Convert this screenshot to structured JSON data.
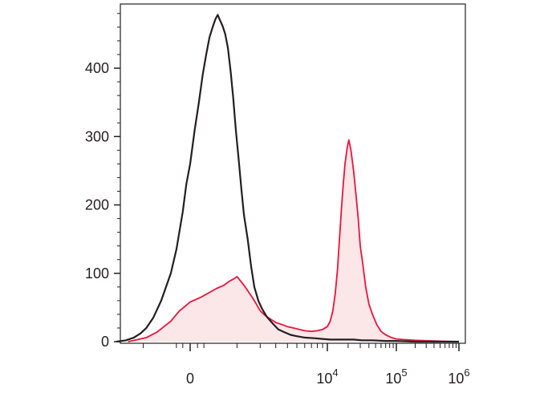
{
  "chart_data": {
    "type": "area",
    "title": "",
    "xlabel": "",
    "ylabel": "",
    "x_scale": "biexponential",
    "ylim": [
      0,
      500
    ],
    "y_ticks": [
      {
        "value": 0,
        "label": "0"
      },
      {
        "value": 100,
        "label": "100"
      },
      {
        "value": 200,
        "label": "200"
      },
      {
        "value": 300,
        "label": "300"
      },
      {
        "value": 400,
        "label": "400"
      }
    ],
    "x_ticks": [
      {
        "value": 0,
        "base": "0",
        "exp": ""
      },
      {
        "value": 10000,
        "base": "10",
        "exp": "4"
      },
      {
        "value": 100000,
        "base": "10",
        "exp": "5"
      },
      {
        "value": 1000000,
        "base": "10",
        "exp": "6"
      }
    ],
    "legend": "none",
    "grid": false,
    "series": [
      {
        "color": "#231f20",
        "fill": "none",
        "points": [
          [
            -2200,
            0
          ],
          [
            -1700,
            2
          ],
          [
            -1350,
            6
          ],
          [
            -1100,
            12
          ],
          [
            -900,
            20
          ],
          [
            -700,
            35
          ],
          [
            -500,
            60
          ],
          [
            -300,
            100
          ],
          [
            -200,
            135
          ],
          [
            -100,
            190
          ],
          [
            -50,
            230
          ],
          [
            0,
            260
          ],
          [
            60,
            310
          ],
          [
            120,
            350
          ],
          [
            180,
            390
          ],
          [
            240,
            420
          ],
          [
            300,
            445
          ],
          [
            360,
            460
          ],
          [
            420,
            472
          ],
          [
            470,
            478
          ],
          [
            520,
            470
          ],
          [
            580,
            462
          ],
          [
            650,
            450
          ],
          [
            720,
            430
          ],
          [
            800,
            395
          ],
          [
            880,
            355
          ],
          [
            960,
            310
          ],
          [
            1050,
            270
          ],
          [
            1150,
            225
          ],
          [
            1250,
            185
          ],
          [
            1400,
            150
          ],
          [
            1550,
            110
          ],
          [
            1700,
            80
          ],
          [
            1900,
            60
          ],
          [
            2100,
            48
          ],
          [
            2400,
            36
          ],
          [
            2800,
            26
          ],
          [
            3200,
            18
          ],
          [
            3700,
            14
          ],
          [
            4300,
            10
          ],
          [
            5000,
            8
          ],
          [
            6000,
            6
          ],
          [
            7500,
            5
          ],
          [
            9000,
            4
          ],
          [
            11000,
            3
          ],
          [
            14000,
            3
          ],
          [
            18000,
            3
          ],
          [
            24000,
            3
          ],
          [
            32000,
            2
          ],
          [
            45000,
            2
          ],
          [
            70000,
            1
          ],
          [
            100000,
            1
          ],
          [
            200000,
            0
          ],
          [
            500000,
            0
          ],
          [
            1000000,
            0
          ]
        ]
      },
      {
        "color": "#e8143c",
        "fill": "#fbe6e8",
        "points": [
          [
            -1600,
            0
          ],
          [
            -1200,
            3
          ],
          [
            -900,
            6
          ],
          [
            -600,
            14
          ],
          [
            -300,
            30
          ],
          [
            -150,
            45
          ],
          [
            0,
            58
          ],
          [
            150,
            65
          ],
          [
            300,
            72
          ],
          [
            450,
            78
          ],
          [
            600,
            82
          ],
          [
            750,
            88
          ],
          [
            900,
            92
          ],
          [
            1000,
            95
          ],
          [
            1100,
            90
          ],
          [
            1200,
            85
          ],
          [
            1300,
            80
          ],
          [
            1450,
            72
          ],
          [
            1600,
            65
          ],
          [
            1800,
            55
          ],
          [
            2000,
            45
          ],
          [
            2300,
            38
          ],
          [
            2700,
            32
          ],
          [
            3000,
            28
          ],
          [
            3500,
            25
          ],
          [
            4000,
            22
          ],
          [
            4600,
            20
          ],
          [
            5300,
            18
          ],
          [
            6000,
            16
          ],
          [
            7000,
            15
          ],
          [
            8000,
            16
          ],
          [
            9000,
            18
          ],
          [
            10000,
            22
          ],
          [
            11000,
            30
          ],
          [
            12000,
            45
          ],
          [
            13000,
            70
          ],
          [
            14000,
            105
          ],
          [
            15000,
            150
          ],
          [
            16000,
            195
          ],
          [
            17000,
            230
          ],
          [
            18000,
            260
          ],
          [
            19500,
            285
          ],
          [
            20500,
            295
          ],
          [
            22000,
            280
          ],
          [
            24000,
            250
          ],
          [
            26000,
            215
          ],
          [
            28000,
            180
          ],
          [
            30000,
            140
          ],
          [
            33000,
            110
          ],
          [
            36000,
            80
          ],
          [
            40000,
            55
          ],
          [
            45000,
            40
          ],
          [
            52000,
            25
          ],
          [
            60000,
            15
          ],
          [
            70000,
            10
          ],
          [
            85000,
            6
          ],
          [
            100000,
            4
          ],
          [
            130000,
            3
          ],
          [
            200000,
            2
          ],
          [
            400000,
            1
          ],
          [
            1000000,
            0
          ]
        ]
      }
    ]
  }
}
